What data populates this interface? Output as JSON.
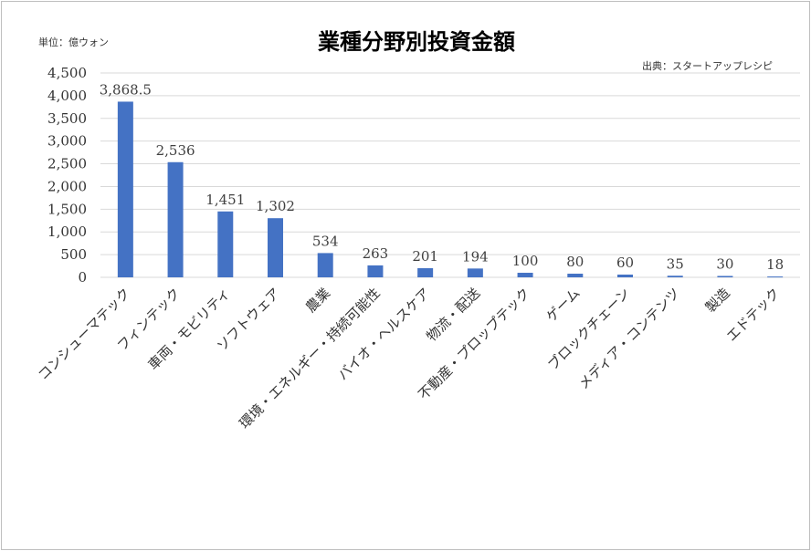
{
  "chart_data": {
    "type": "bar",
    "title": "業種分野別投資金額",
    "unit_label": "単位：億ウォン",
    "source_label": "出典：スタートアップレシピ",
    "categories": [
      "コンシューマテック",
      "フィンテック",
      "車両・モビリティ",
      "ソフトウェア",
      "農業",
      "環境・エネルギー・持続可能性",
      "バイオ・ヘルスケア",
      "物流・配送",
      "不動産・プロップテック",
      "ゲーム",
      "ブロックチェーン",
      "メディア・コンテンツ",
      "製造",
      "エドテック"
    ],
    "values": [
      3868.5,
      2536,
      1451,
      1302,
      534,
      263,
      201,
      194,
      100,
      80,
      60,
      35,
      30,
      18
    ],
    "value_labels": [
      "3,868.5",
      "2,536",
      "1,451",
      "1,302",
      "534",
      "263",
      "201",
      "194",
      "100",
      "80",
      "60",
      "35",
      "30",
      "18"
    ],
    "ylim": [
      0,
      4500
    ],
    "yticks": [
      "0",
      "500",
      "1,000",
      "1,500",
      "2,000",
      "2,500",
      "3,000",
      "3,500",
      "4,000",
      "4,500"
    ],
    "grid": true,
    "legend": "none",
    "bar_color": "#4472C4"
  }
}
